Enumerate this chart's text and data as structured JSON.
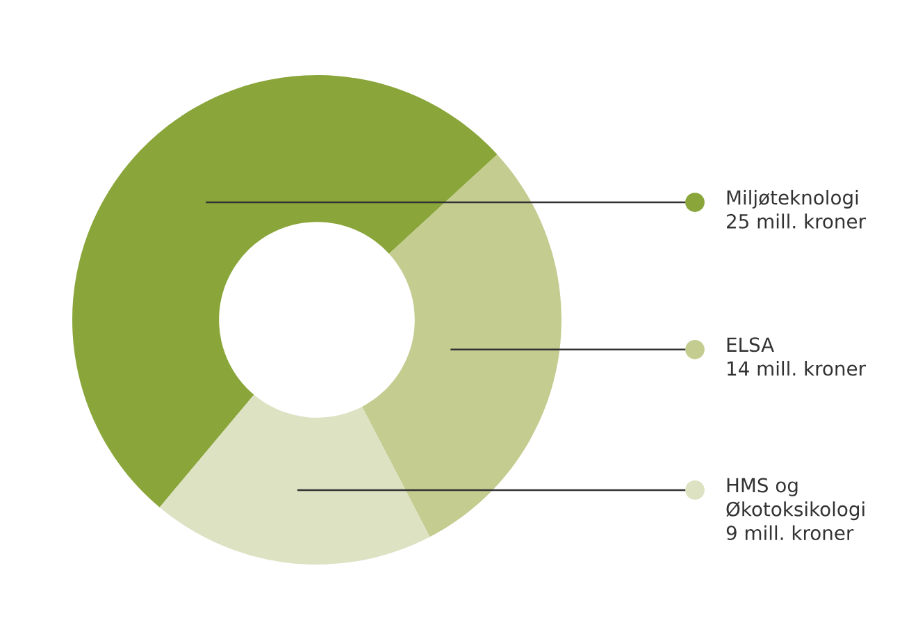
{
  "chart_data": {
    "type": "donut",
    "categories": [
      "Miljøteknologi",
      "ELSA",
      "HMS og\nØkotoksikologi"
    ],
    "values": [
      25,
      14,
      9
    ],
    "value_labels": [
      "25 mill. kroner",
      "14 mill. kroner",
      "9 mill. kroner"
    ],
    "colors": [
      "#8aa63a",
      "#c4cc90",
      "#dde2c3"
    ],
    "legend": "right"
  }
}
